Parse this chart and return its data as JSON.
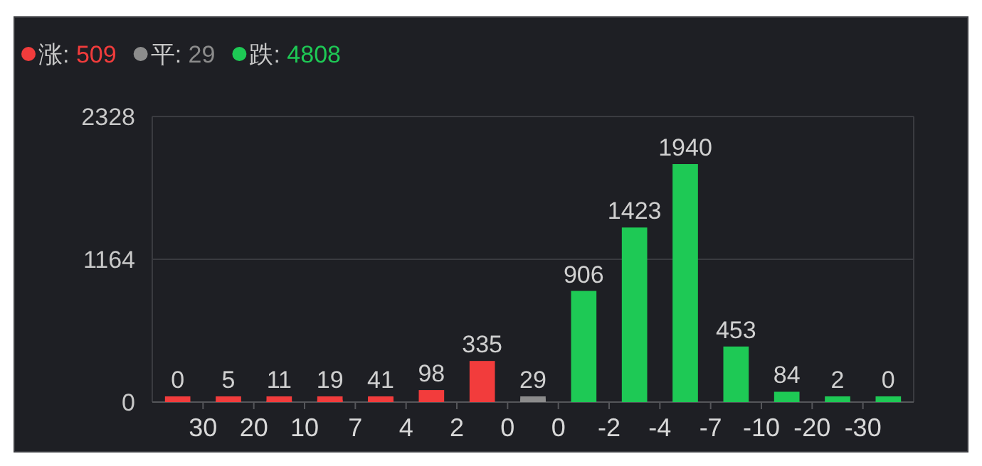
{
  "chart_data": {
    "type": "bar",
    "categories": [
      null,
      null,
      null,
      null,
      null,
      null,
      null,
      null,
      null,
      null,
      null,
      null,
      null,
      null,
      null
    ],
    "annotations": [
      "30",
      "20",
      "10",
      "7",
      "4",
      "2",
      "0",
      "0",
      "-2",
      "-4",
      "-7",
      "-10",
      "-20",
      "-30"
    ],
    "ylim": [
      0,
      2328
    ],
    "yticks": [
      0,
      1164,
      2328
    ],
    "grid": "y",
    "legend": "top left",
    "data_labels": true,
    "series": [
      {
        "name": "涨: 509",
        "color": "#f23c3c",
        "values": [
          0,
          5,
          11,
          19,
          41,
          98,
          335,
          null,
          null,
          null,
          null,
          null,
          null,
          null,
          null
        ]
      },
      {
        "name": "平: 29",
        "color": "#8c8c8c",
        "values": [
          null,
          null,
          null,
          null,
          null,
          null,
          null,
          29,
          null,
          null,
          null,
          null,
          null,
          null,
          null
        ]
      },
      {
        "name": "跌: 4808",
        "color": "#1ec955",
        "values": [
          null,
          null,
          null,
          null,
          null,
          null,
          null,
          null,
          906,
          1423,
          1940,
          453,
          84,
          2,
          0
        ]
      }
    ]
  }
}
